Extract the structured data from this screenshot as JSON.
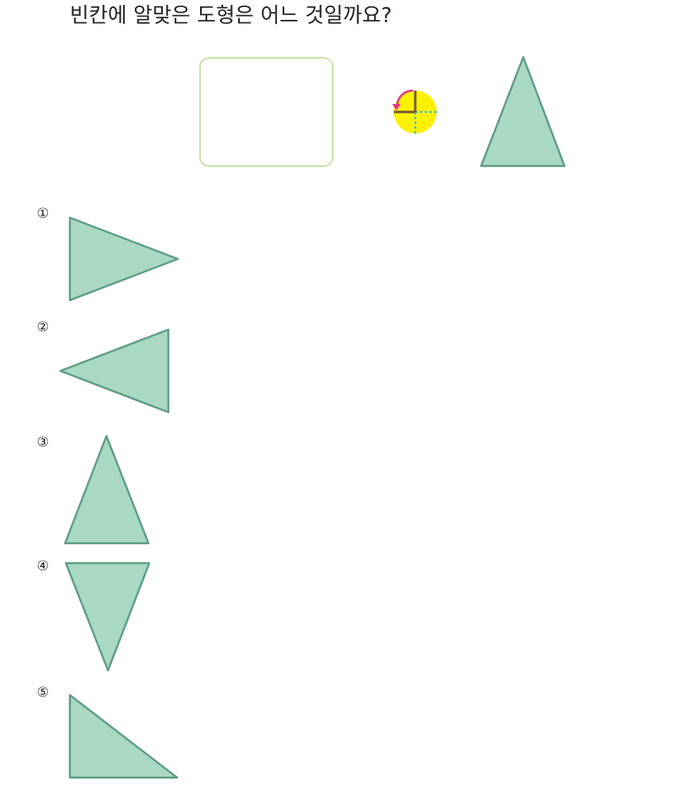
{
  "question": "빈칸에 알맞은 도형은 어느 것일까요?",
  "colors": {
    "shape_fill": "#a9d8c3",
    "shape_stroke": "#5e9c85",
    "blank_border": "#c5e2a4",
    "rotation_circle": "#fff200",
    "rotation_arrow": "#e8338b",
    "rotation_hand": "#6b5a2e",
    "rotation_guide": "#35c0d6"
  },
  "rotation_icon": "rotate-counterclockwise-90-icon",
  "choices": [
    {
      "number": "①",
      "shape": "triangle-pointing-right"
    },
    {
      "number": "②",
      "shape": "triangle-pointing-left"
    },
    {
      "number": "③",
      "shape": "triangle-pointing-up"
    },
    {
      "number": "④",
      "shape": "triangle-pointing-down"
    },
    {
      "number": "⑤",
      "shape": "right-triangle"
    }
  ]
}
